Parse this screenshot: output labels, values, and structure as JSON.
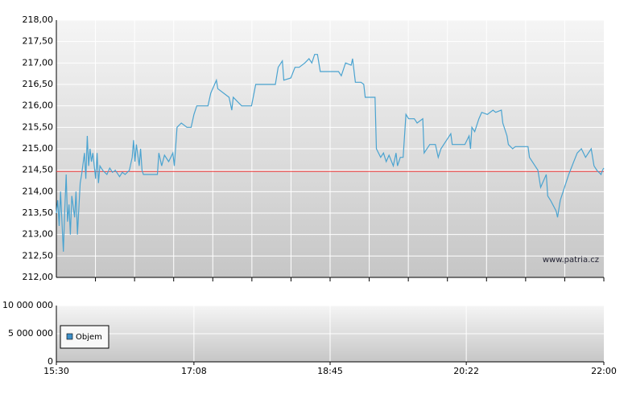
{
  "chart_data": [
    {
      "type": "line",
      "xlim": [
        "15:30",
        "22:00"
      ],
      "ylim": [
        212,
        218
      ],
      "yticks": [
        {
          "value": 212,
          "label": "212,00"
        },
        {
          "value": 212.5,
          "label": "212,50"
        },
        {
          "value": 213,
          "label": "213,00"
        },
        {
          "value": 213.5,
          "label": "213,50"
        },
        {
          "value": 214,
          "label": "214,00"
        },
        {
          "value": 214.5,
          "label": "214,50"
        },
        {
          "value": 215,
          "label": "215,00"
        },
        {
          "value": 215.5,
          "label": "215,50"
        },
        {
          "value": 216,
          "label": "216,00"
        },
        {
          "value": 216.5,
          "label": "216,50"
        },
        {
          "value": 217,
          "label": "217,00"
        },
        {
          "value": 217.5,
          "label": "217,50"
        },
        {
          "value": 218,
          "label": "218,00"
        }
      ],
      "grid": true,
      "reference_line": {
        "value": 214.47,
        "color": "#f03c3c"
      },
      "watermark": "www.patria.cz",
      "x": [
        "15:30",
        "15:31",
        "15:32",
        "15:33",
        "15:35",
        "15:36",
        "15:37",
        "15:38",
        "15:39",
        "15:40",
        "15:41",
        "15:43",
        "15:44",
        "15:45",
        "15:46",
        "15:47",
        "15:48",
        "15:50",
        "15:51",
        "15:52",
        "15:53",
        "15:54",
        "15:55",
        "15:56",
        "15:58",
        "15:59",
        "16:00",
        "16:01",
        "16:03",
        "16:06",
        "16:08",
        "16:10",
        "16:12",
        "16:15",
        "16:17",
        "16:19",
        "16:22",
        "16:24",
        "16:25",
        "16:26",
        "16:27",
        "16:29",
        "16:30",
        "16:31",
        "16:32",
        "16:42",
        "16:43",
        "16:45",
        "16:47",
        "16:50",
        "16:53",
        "16:54",
        "16:56",
        "16:59",
        "17:03",
        "17:06",
        "17:08",
        "17:10",
        "17:18",
        "17:20",
        "17:24",
        "17:25",
        "17:33",
        "17:35",
        "17:36",
        "17:42",
        "17:49",
        "17:52",
        "17:59",
        "18:06",
        "18:08",
        "18:11",
        "18:12",
        "18:17",
        "18:20",
        "18:23",
        "18:27",
        "18:30",
        "18:32",
        "18:34",
        "18:36",
        "18:38",
        "18:45",
        "18:51",
        "18:53",
        "18:56",
        "19:00",
        "19:01",
        "19:03",
        "19:07",
        "19:09",
        "19:10",
        "19:14",
        "19:17",
        "19:18",
        "19:21",
        "19:23",
        "19:25",
        "19:27",
        "19:30",
        "19:32",
        "19:33",
        "19:35",
        "19:37",
        "19:39",
        "19:41",
        "19:45",
        "19:47",
        "19:51",
        "19:52",
        "19:56",
        "20:00",
        "20:02",
        "20:04",
        "20:08",
        "20:11",
        "20:12",
        "20:17",
        "20:21",
        "20:24",
        "20:25",
        "20:26",
        "20:28",
        "20:31",
        "20:33",
        "20:37",
        "20:41",
        "20:43",
        "20:47",
        "20:48",
        "20:51",
        "20:52",
        "20:55",
        "20:57",
        "21:06",
        "21:07",
        "21:13",
        "21:15",
        "21:19",
        "21:20",
        "21:22",
        "21:26",
        "21:27",
        "21:29",
        "21:31",
        "21:35",
        "21:38",
        "21:41",
        "21:44",
        "21:47",
        "21:51",
        "21:53",
        "21:55",
        "21:58",
        "21:59",
        "22:00"
      ],
      "series": [
        {
          "color": "#4aa3d0",
          "values": [
            213.5,
            213.8,
            213.2,
            214.0,
            212.6,
            213.6,
            214.4,
            213.3,
            213.7,
            213.0,
            213.9,
            213.4,
            214.0,
            213.0,
            213.6,
            214.2,
            214.4,
            214.9,
            214.3,
            215.3,
            214.6,
            215.0,
            214.7,
            214.9,
            214.3,
            214.9,
            214.2,
            214.6,
            214.5,
            214.4,
            214.55,
            214.45,
            214.5,
            214.35,
            214.45,
            214.4,
            214.5,
            214.8,
            215.2,
            214.7,
            215.1,
            214.6,
            215.0,
            214.5,
            214.4,
            214.4,
            214.9,
            214.6,
            214.85,
            214.7,
            214.9,
            214.6,
            215.5,
            215.6,
            215.5,
            215.5,
            215.8,
            216.0,
            216.0,
            216.3,
            216.6,
            216.4,
            216.2,
            215.9,
            216.2,
            216.0,
            216.0,
            216.5,
            216.5,
            216.5,
            216.9,
            217.05,
            216.6,
            216.65,
            216.9,
            216.9,
            217.0,
            217.1,
            217.0,
            217.2,
            217.2,
            216.8,
            216.8,
            216.8,
            216.7,
            217.0,
            216.95,
            217.1,
            216.55,
            216.55,
            216.5,
            216.2,
            216.2,
            216.2,
            215.0,
            214.8,
            214.9,
            214.7,
            214.85,
            214.6,
            214.9,
            214.6,
            214.8,
            214.8,
            215.8,
            215.7,
            215.7,
            215.6,
            215.7,
            214.9,
            215.1,
            215.1,
            214.8,
            215.0,
            215.2,
            215.35,
            215.1,
            215.1,
            215.1,
            215.3,
            215.0,
            215.5,
            215.4,
            215.7,
            215.85,
            215.8,
            215.9,
            215.85,
            215.9,
            215.6,
            215.3,
            215.1,
            215.0,
            215.05,
            215.05,
            214.8,
            214.5,
            214.1,
            214.4,
            213.9,
            213.8,
            213.55,
            213.4,
            213.8,
            214.0,
            214.4,
            214.65,
            214.9,
            215.0,
            214.8,
            215.0,
            214.6,
            214.5,
            214.4,
            214.5,
            214.55
          ]
        }
      ]
    },
    {
      "type": "bar",
      "xlim": [
        "15:30",
        "22:00"
      ],
      "xticks": [
        "15:30",
        "17:08",
        "18:45",
        "20:22",
        "22:00"
      ],
      "ylim": [
        0,
        10000000
      ],
      "yticks": [
        0,
        {
          "value": 5000000,
          "label": "5 000 000"
        },
        {
          "value": 10000000,
          "label": "10 000 000"
        }
      ],
      "grid": true,
      "legend": "top-left",
      "x": [],
      "series": [
        {
          "name": "Objem",
          "color": "#3d8fc8",
          "values": []
        }
      ]
    }
  ]
}
